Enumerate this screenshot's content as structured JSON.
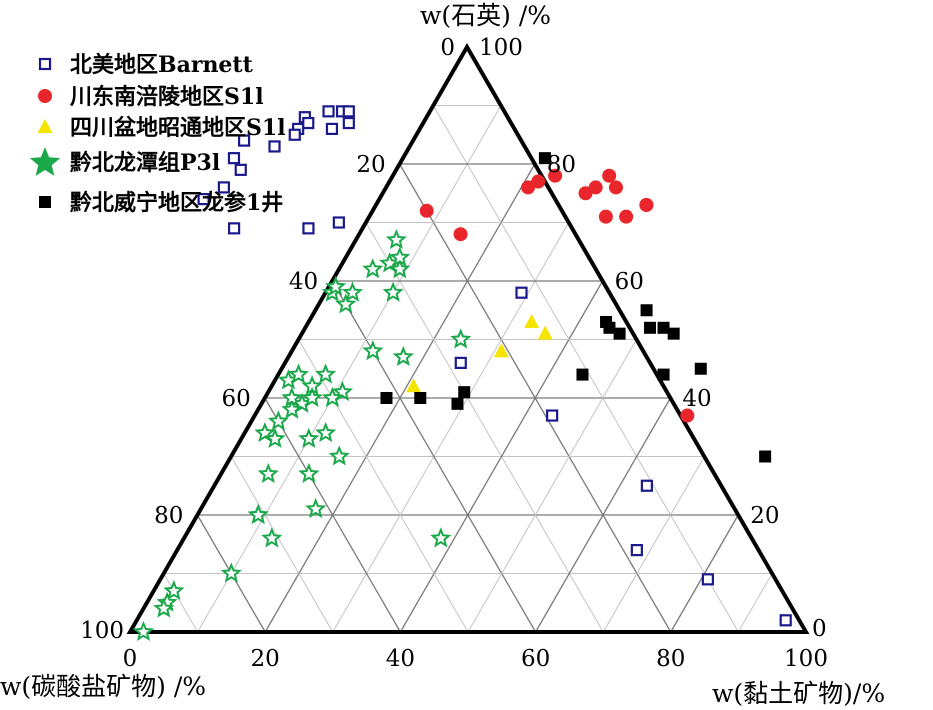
{
  "chart_data": {
    "type": "ternary-scatter",
    "axes": {
      "top": {
        "label": "w(石英) /%",
        "ticks": [
          "0",
          "20",
          "40",
          "60",
          "80",
          "100"
        ]
      },
      "left": {
        "label": "w(碳酸盐矿物) /%",
        "ticks": [
          "100",
          "80",
          "60",
          "40",
          "20",
          "0"
        ]
      },
      "right": {
        "label": "w(黏土矿物)/%",
        "ticks": [
          "0",
          "20",
          "40",
          "60",
          "80",
          "100"
        ]
      },
      "bottom_ticks": [
        "0",
        "20",
        "40",
        "60",
        "80",
        "100"
      ],
      "top_apex_labels": [
        "0",
        "100"
      ]
    },
    "grid": true,
    "legend_position": "top-left",
    "series": [
      {
        "name": "北美地区Barnett",
        "marker": "open-square",
        "color": "#1a1a8c",
        "points": [
          [
            2,
            2,
            96
          ],
          [
            9,
            10,
            81
          ],
          [
            14,
            18,
            68
          ],
          [
            25,
            11,
            64
          ],
          [
            37,
            19,
            44
          ],
          [
            46,
            28,
            26
          ],
          [
            58,
            13,
            29
          ],
          [
            70,
            34,
            -4
          ],
          [
            69,
            39,
            -8
          ],
          [
            69,
            50,
            -19
          ],
          [
            74,
            52,
            -26
          ],
          [
            76,
            48,
            -24
          ],
          [
            79,
            44,
            -23
          ],
          [
            81,
            44,
            -25
          ],
          [
            84,
            41,
            -25
          ],
          [
            83,
            37,
            -20
          ],
          [
            86,
            32,
            -18
          ],
          [
            85,
            33,
            -18
          ],
          [
            88,
            30,
            -18
          ],
          [
            87,
            30,
            -17
          ],
          [
            86,
            27,
            -13
          ],
          [
            89,
            26,
            -15
          ],
          [
            87,
            24,
            -11
          ],
          [
            89,
            24,
            -13
          ],
          [
            89,
            23,
            -12
          ]
        ]
      },
      {
        "name": "川东南涪陵地区S1l",
        "marker": "filled-circle",
        "color": "#e8262b",
        "points": [
          [
            76,
            3,
            21
          ],
          [
            77,
            1,
            22
          ],
          [
            78,
            -2,
            24
          ],
          [
            75,
            -5,
            30
          ],
          [
            76,
            -7,
            31
          ],
          [
            78,
            -10,
            32
          ],
          [
            76,
            -10,
            34
          ],
          [
            73,
            -13,
            40
          ],
          [
            73,
            -13,
            40
          ],
          [
            71,
            -9,
            38
          ],
          [
            71,
            -6,
            35
          ],
          [
            37,
            -1,
            64
          ],
          [
            68,
            17,
            15
          ],
          [
            72,
            20,
            8
          ]
        ]
      },
      {
        "name": "四川盆地昭通地区S1l",
        "marker": "filled-triangle",
        "color": "#f5e400",
        "points": [
          [
            48,
            21,
            31
          ],
          [
            51,
            13,
            36
          ],
          [
            42,
            37,
            21
          ],
          [
            53,
            14,
            33
          ]
        ]
      },
      {
        "name": "黔北龙潭组P3l",
        "marker": "open-star",
        "color": "#1aa84a",
        "points": [
          [
            50,
            26,
            24
          ],
          [
            47,
            36,
            17
          ],
          [
            48,
            40,
            12
          ],
          [
            58,
            41,
            1
          ],
          [
            56,
            40,
            4
          ],
          [
            59,
            40,
            1
          ],
          [
            63,
            30,
            7
          ],
          [
            62,
            29,
            9
          ],
          [
            62,
            33,
            5
          ],
          [
            67,
            27,
            6
          ],
          [
            58,
            38,
            4
          ],
          [
            44,
            49,
            7
          ],
          [
            41,
            48,
            11
          ],
          [
            40,
            50,
            10
          ],
          [
            42,
            52,
            6
          ],
          [
            39,
            55,
            6
          ],
          [
            38,
            57,
            5
          ],
          [
            27,
            60,
            13
          ],
          [
            16,
            46,
            38
          ],
          [
            64,
            28,
            8
          ],
          [
            58,
            32,
            10
          ],
          [
            43,
            55,
            2
          ],
          [
            44,
            53,
            3
          ],
          [
            40,
            53,
            7
          ],
          [
            36,
            60,
            4
          ],
          [
            33,
            57,
            10
          ],
          [
            34,
            63,
            3
          ],
          [
            30,
            54,
            16
          ],
          [
            27,
            66,
            7
          ],
          [
            16,
            71,
            13
          ],
          [
            20,
            71,
            9
          ],
          [
            20,
            71,
            9
          ],
          [
            10,
            80,
            10
          ],
          [
            7,
            90,
            3
          ],
          [
            5,
            92,
            3
          ],
          [
            4,
            93,
            3
          ],
          [
            0,
            98,
            2
          ],
          [
            33,
            62,
            5
          ],
          [
            34,
            54,
            12
          ],
          [
            40,
            56,
            4
          ],
          [
            21,
            62,
            17
          ]
        ]
      },
      {
        "name": "黔北威宁地区龙参1井",
        "marker": "filled-square",
        "color": "#000000",
        "points": [
          [
            81,
            -2,
            21
          ],
          [
            55,
            -4,
            49
          ],
          [
            52,
            -3,
            51
          ],
          [
            51,
            -6,
            55
          ],
          [
            51,
            2,
            47
          ],
          [
            52,
            3,
            45
          ],
          [
            52,
            -5,
            53
          ],
          [
            53,
            3,
            44
          ],
          [
            44,
            11,
            45
          ],
          [
            41,
            30,
            29
          ],
          [
            40,
            37,
            23
          ],
          [
            39,
            32,
            29
          ],
          [
            40,
            42,
            18
          ],
          [
            44,
            -1,
            57
          ],
          [
            45,
            -7,
            62
          ],
          [
            30,
            -9,
            79
          ]
        ]
      }
    ]
  }
}
